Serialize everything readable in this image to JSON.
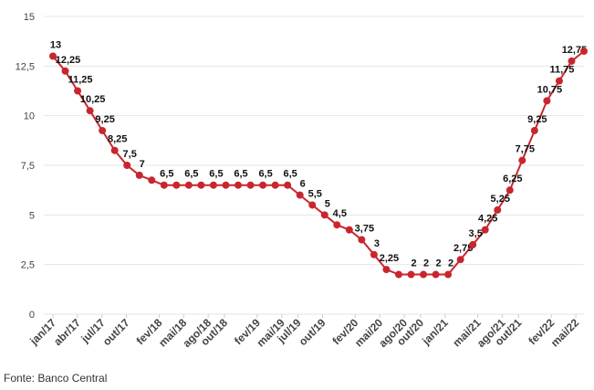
{
  "chart_data": {
    "type": "line",
    "title": "",
    "xlabel": "",
    "ylabel": "",
    "ylim": [
      0,
      15
    ],
    "yticks": [
      "0",
      "2,5",
      "5",
      "7,5",
      "10",
      "12,5",
      "15"
    ],
    "ytick_values": [
      0,
      2.5,
      5,
      7.5,
      10,
      12.5,
      15
    ],
    "xticks": [
      {
        "label": "jan/17",
        "index": 0
      },
      {
        "label": "abr/17",
        "index": 3
      },
      {
        "label": "jul/17",
        "index": 6
      },
      {
        "label": "out/17",
        "index": 9
      },
      {
        "label": "fev/18",
        "index": 13
      },
      {
        "label": "mai/18",
        "index": 16
      },
      {
        "label": "ago/18",
        "index": 19
      },
      {
        "label": "out/18",
        "index": 21
      },
      {
        "label": "fev/19",
        "index": 25
      },
      {
        "label": "mai/19",
        "index": 28
      },
      {
        "label": "jul/19",
        "index": 30
      },
      {
        "label": "out/19",
        "index": 33
      },
      {
        "label": "fev/20",
        "index": 37
      },
      {
        "label": "mai/20",
        "index": 40
      },
      {
        "label": "ago/20",
        "index": 43
      },
      {
        "label": "out/20",
        "index": 45
      },
      {
        "label": "jan/21",
        "index": 48
      },
      {
        "label": "mai/21",
        "index": 52
      },
      {
        "label": "ago/21",
        "index": 55
      },
      {
        "label": "out/21",
        "index": 57
      },
      {
        "label": "fev/22",
        "index": 61
      },
      {
        "label": "mai/22",
        "index": 64
      }
    ],
    "points": [
      {
        "v": 13,
        "label": "13"
      },
      {
        "v": 12.25,
        "label": "12,25"
      },
      {
        "v": 11.25,
        "label": "11,25"
      },
      {
        "v": 10.25,
        "label": "10,25"
      },
      {
        "v": 9.25,
        "label": "9,25"
      },
      {
        "v": 8.25,
        "label": "8,25"
      },
      {
        "v": 7.5,
        "label": "7,5"
      },
      {
        "v": 7,
        "label": "7"
      },
      {
        "v": 6.75,
        "label": ""
      },
      {
        "v": 6.5,
        "label": "6,5"
      },
      {
        "v": 6.5,
        "label": ""
      },
      {
        "v": 6.5,
        "label": "6,5"
      },
      {
        "v": 6.5,
        "label": ""
      },
      {
        "v": 6.5,
        "label": "6,5"
      },
      {
        "v": 6.5,
        "label": ""
      },
      {
        "v": 6.5,
        "label": "6,5"
      },
      {
        "v": 6.5,
        "label": ""
      },
      {
        "v": 6.5,
        "label": "6,5"
      },
      {
        "v": 6.5,
        "label": ""
      },
      {
        "v": 6.5,
        "label": "6,5"
      },
      {
        "v": 6,
        "label": "6"
      },
      {
        "v": 5.5,
        "label": "5,5"
      },
      {
        "v": 5,
        "label": "5"
      },
      {
        "v": 4.5,
        "label": "4,5"
      },
      {
        "v": 4.25,
        "label": ""
      },
      {
        "v": 3.75,
        "label": "3,75"
      },
      {
        "v": 3,
        "label": "3"
      },
      {
        "v": 2.25,
        "label": "2,25"
      },
      {
        "v": 2,
        "label": ""
      },
      {
        "v": 2,
        "label": "2"
      },
      {
        "v": 2,
        "label": "2"
      },
      {
        "v": 2,
        "label": "2"
      },
      {
        "v": 2,
        "label": "2"
      },
      {
        "v": 2.75,
        "label": "2,75"
      },
      {
        "v": 3.5,
        "label": "3,5"
      },
      {
        "v": 4.25,
        "label": "4,25"
      },
      {
        "v": 5.25,
        "label": "5,25"
      },
      {
        "v": 6.25,
        "label": "6,25"
      },
      {
        "v": 7.75,
        "label": "7,75"
      },
      {
        "v": 9.25,
        "label": "9,25"
      },
      {
        "v": 10.75,
        "label": "10,75"
      },
      {
        "v": 11.75,
        "label": "11,75"
      },
      {
        "v": 12.75,
        "label": "12,75"
      },
      {
        "v": 13.25,
        "label": ""
      }
    ],
    "period_slots": 66,
    "colors": {
      "line": "#c8262e",
      "grid": "#e6e6e6",
      "axis_text": "#444444",
      "label_text": "#111111"
    }
  },
  "source": "Fonte: Banco Central"
}
